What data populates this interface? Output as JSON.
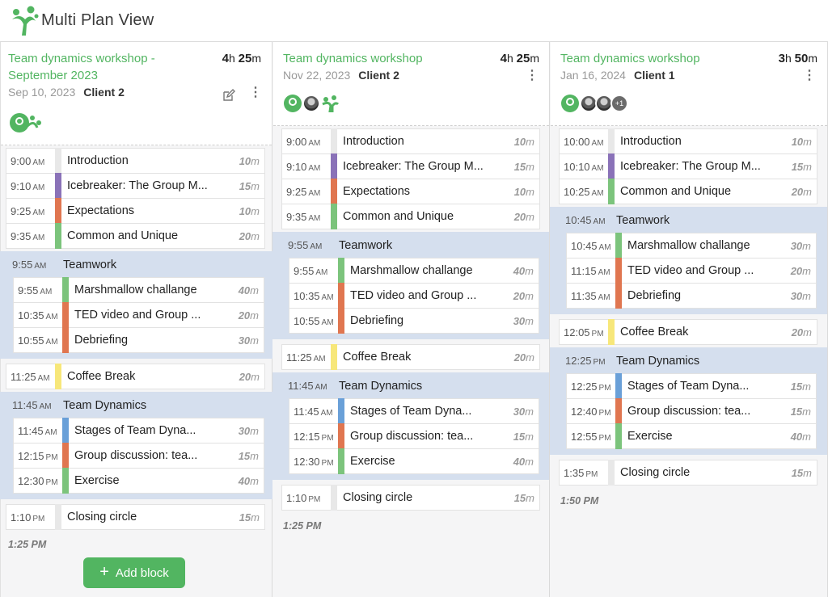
{
  "app": {
    "title": "Multi Plan View"
  },
  "colors": {
    "accent": "#52b561",
    "group_bg": "#d5dfee",
    "purple": "#8a72b8",
    "orange": "#e07650",
    "green": "#7cc47c",
    "yellow": "#f7e77a",
    "blue": "#6aa0d8",
    "gray": "#e8e8e8"
  },
  "actions": {
    "add_block": "Add block"
  },
  "plans": [
    {
      "title": "Team dynamics workshop - September 2023",
      "duration_h": "4",
      "duration_m": "25",
      "date": "Sep 10, 2023",
      "client": "Client 2",
      "end_time": "1:25 PM"
    },
    {
      "title": "Team dynamics workshop",
      "duration_h": "4",
      "duration_m": "25",
      "date": "Nov 22, 2023",
      "client": "Client 2",
      "end_time": "1:25 PM"
    },
    {
      "title": "Team dynamics workshop",
      "duration_h": "3",
      "duration_m": "50",
      "date": "Jan 16, 2024",
      "client": "Client 1",
      "end_time": "1:50 PM",
      "avatar_more": "+1"
    }
  ],
  "blocks": {
    "p0": [
      {
        "time": "9:00",
        "ap": "AM",
        "title": "Introduction",
        "len": "10",
        "color": "gray"
      },
      {
        "time": "9:10",
        "ap": "AM",
        "title": "Icebreaker: The Group M...",
        "len": "15",
        "color": "purple"
      },
      {
        "time": "9:25",
        "ap": "AM",
        "title": "Expectations",
        "len": "10",
        "color": "orange"
      },
      {
        "time": "9:35",
        "ap": "AM",
        "title": "Common and Unique",
        "len": "20",
        "color": "green"
      },
      {
        "group": true,
        "time": "9:55",
        "ap": "AM",
        "title": "Teamwork"
      },
      {
        "time": "9:55",
        "ap": "AM",
        "title": "Marshmallow challange",
        "len": "40",
        "color": "green",
        "indent": true
      },
      {
        "time": "10:35",
        "ap": "AM",
        "title": "TED video and Group ...",
        "len": "20",
        "color": "orange",
        "indent": true
      },
      {
        "time": "10:55",
        "ap": "AM",
        "title": "Debriefing",
        "len": "30",
        "color": "orange",
        "indent": true
      },
      {
        "time": "11:25",
        "ap": "AM",
        "title": "Coffee Break",
        "len": "20",
        "color": "yellow"
      },
      {
        "group": true,
        "time": "11:45",
        "ap": "AM",
        "title": "Team Dynamics"
      },
      {
        "time": "11:45",
        "ap": "AM",
        "title": "Stages of Team Dyna...",
        "len": "30",
        "color": "blue",
        "indent": true
      },
      {
        "time": "12:15",
        "ap": "PM",
        "title": "Group discussion: tea...",
        "len": "15",
        "color": "orange",
        "indent": true
      },
      {
        "time": "12:30",
        "ap": "PM",
        "title": "Exercise",
        "len": "40",
        "color": "green",
        "indent": true
      },
      {
        "time": "1:10",
        "ap": "PM",
        "title": "Closing circle",
        "len": "15",
        "color": "gray"
      }
    ],
    "p1": [
      {
        "time": "9:00",
        "ap": "AM",
        "title": "Introduction",
        "len": "10",
        "color": "gray"
      },
      {
        "time": "9:10",
        "ap": "AM",
        "title": "Icebreaker: The Group M...",
        "len": "15",
        "color": "purple"
      },
      {
        "time": "9:25",
        "ap": "AM",
        "title": "Expectations",
        "len": "10",
        "color": "orange"
      },
      {
        "time": "9:35",
        "ap": "AM",
        "title": "Common and Unique",
        "len": "20",
        "color": "green"
      },
      {
        "group": true,
        "time": "9:55",
        "ap": "AM",
        "title": "Teamwork"
      },
      {
        "time": "9:55",
        "ap": "AM",
        "title": "Marshmallow challange",
        "len": "40",
        "color": "green",
        "indent": true
      },
      {
        "time": "10:35",
        "ap": "AM",
        "title": "TED video and Group ...",
        "len": "20",
        "color": "orange",
        "indent": true
      },
      {
        "time": "10:55",
        "ap": "AM",
        "title": "Debriefing",
        "len": "30",
        "color": "orange",
        "indent": true
      },
      {
        "time": "11:25",
        "ap": "AM",
        "title": "Coffee Break",
        "len": "20",
        "color": "yellow"
      },
      {
        "group": true,
        "time": "11:45",
        "ap": "AM",
        "title": "Team Dynamics"
      },
      {
        "time": "11:45",
        "ap": "AM",
        "title": "Stages of Team Dyna...",
        "len": "30",
        "color": "blue",
        "indent": true
      },
      {
        "time": "12:15",
        "ap": "PM",
        "title": "Group discussion: tea...",
        "len": "15",
        "color": "orange",
        "indent": true
      },
      {
        "time": "12:30",
        "ap": "PM",
        "title": "Exercise",
        "len": "40",
        "color": "green",
        "indent": true
      },
      {
        "time": "1:10",
        "ap": "PM",
        "title": "Closing circle",
        "len": "15",
        "color": "gray"
      }
    ],
    "p2": [
      {
        "time": "10:00",
        "ap": "AM",
        "title": "Introduction",
        "len": "10",
        "color": "gray"
      },
      {
        "time": "10:10",
        "ap": "AM",
        "title": "Icebreaker: The Group M...",
        "len": "15",
        "color": "purple"
      },
      {
        "time": "10:25",
        "ap": "AM",
        "title": "Common and Unique",
        "len": "20",
        "color": "green"
      },
      {
        "group": true,
        "time": "10:45",
        "ap": "AM",
        "title": "Teamwork"
      },
      {
        "time": "10:45",
        "ap": "AM",
        "title": "Marshmallow challange",
        "len": "30",
        "color": "green",
        "indent": true
      },
      {
        "time": "11:15",
        "ap": "AM",
        "title": "TED video and Group ...",
        "len": "20",
        "color": "orange",
        "indent": true
      },
      {
        "time": "11:35",
        "ap": "AM",
        "title": "Debriefing",
        "len": "30",
        "color": "orange",
        "indent": true
      },
      {
        "time": "12:05",
        "ap": "PM",
        "title": "Coffee Break",
        "len": "20",
        "color": "yellow"
      },
      {
        "group": true,
        "time": "12:25",
        "ap": "PM",
        "title": "Team Dynamics"
      },
      {
        "time": "12:25",
        "ap": "PM",
        "title": "Stages of Team Dyna...",
        "len": "15",
        "color": "blue",
        "indent": true
      },
      {
        "time": "12:40",
        "ap": "PM",
        "title": "Group discussion: tea...",
        "len": "15",
        "color": "orange",
        "indent": true
      },
      {
        "time": "12:55",
        "ap": "PM",
        "title": "Exercise",
        "len": "40",
        "color": "green",
        "indent": true
      },
      {
        "time": "1:35",
        "ap": "PM",
        "title": "Closing circle",
        "len": "15",
        "color": "gray"
      }
    ]
  }
}
